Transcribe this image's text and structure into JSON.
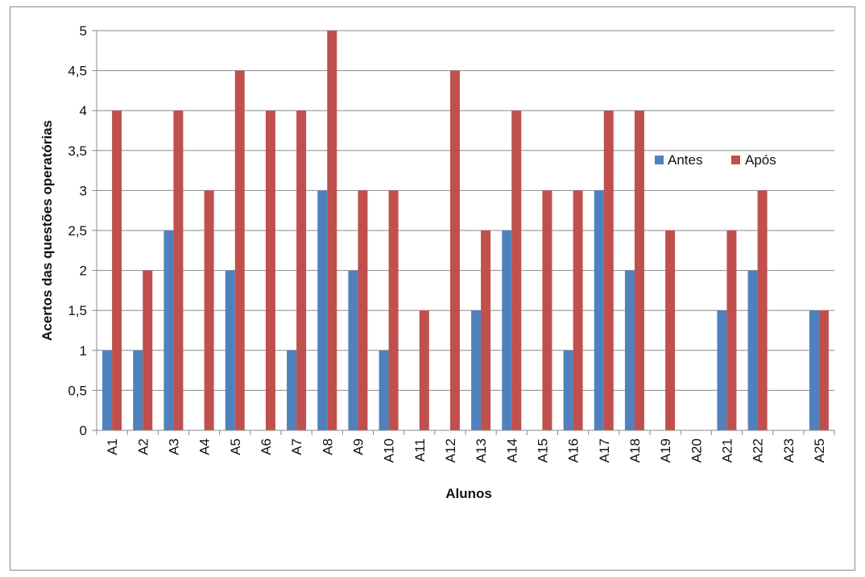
{
  "chart_data": {
    "type": "bar",
    "title": "",
    "xlabel": "Alunos",
    "ylabel": "Acertos das questões operatórias",
    "ylim": [
      0,
      5
    ],
    "yticks": [
      "0",
      "0,5",
      "1",
      "1,5",
      "2",
      "2,5",
      "3",
      "3,5",
      "4",
      "4,5",
      "5"
    ],
    "grid": true,
    "legend_position": "right",
    "categories": [
      "A1",
      "A2",
      "A3",
      "A4",
      "A5",
      "A6",
      "A7",
      "A8",
      "A9",
      "A10",
      "A11",
      "A12",
      "A13",
      "A14",
      "A15",
      "A16",
      "A17",
      "A18",
      "A19",
      "A20",
      "A21",
      "A22",
      "A23",
      "A25"
    ],
    "series": [
      {
        "name": "Antes",
        "color": "#4f81bd",
        "values": [
          1,
          1,
          2.5,
          0,
          2,
          0,
          1,
          3,
          2,
          1,
          0,
          0,
          1.5,
          2.5,
          0,
          1,
          3,
          2,
          0,
          0,
          1.5,
          2,
          0,
          1.5
        ]
      },
      {
        "name": "Após",
        "color": "#c0504d",
        "values": [
          4,
          2,
          4,
          3,
          4.5,
          4,
          4,
          5,
          3,
          3,
          1.5,
          4.5,
          2.5,
          4,
          3,
          3,
          4,
          4,
          2.5,
          0,
          2.5,
          3,
          0,
          1.5
        ]
      }
    ]
  }
}
